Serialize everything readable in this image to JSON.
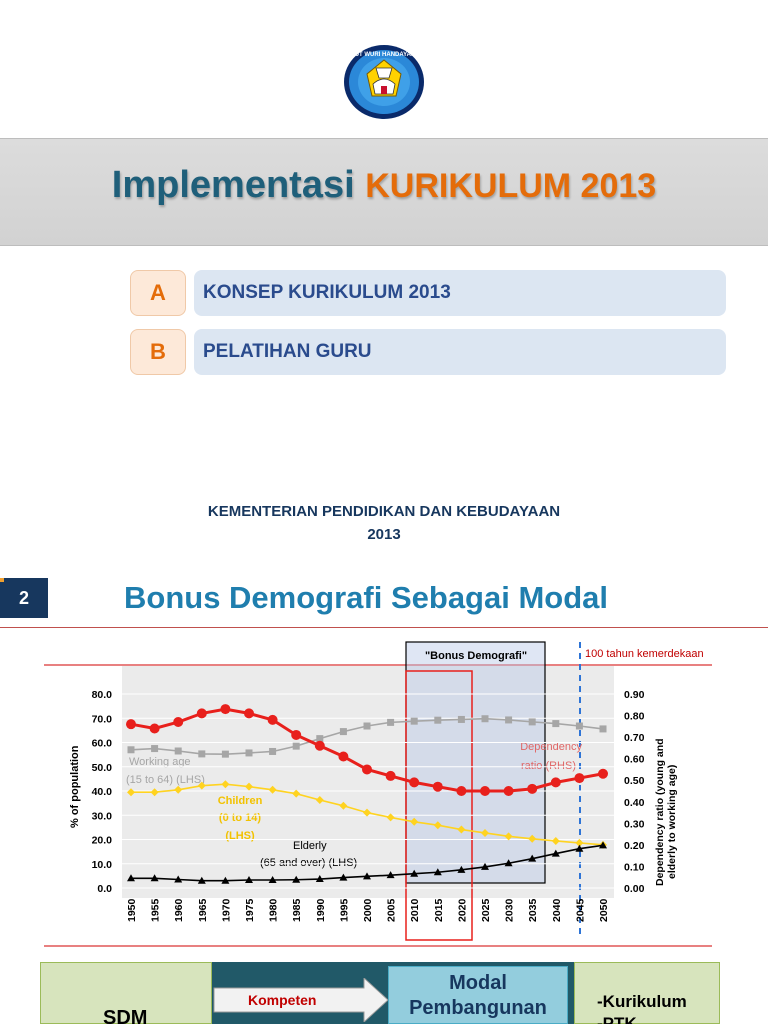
{
  "slide1": {
    "title_main": "Implementasi",
    "title_accent": "KURIKULUM 2013",
    "logo_text": "TUT WURI HANDAYANI",
    "menu": [
      {
        "letter": "A",
        "label": "KONSEP KURIKULUM 2013"
      },
      {
        "letter": "B",
        "label": "PELATIHAN GURU"
      }
    ],
    "ministry": "KEMENTERIAN PENDIDIKAN DAN KEBUDAYAAN",
    "year": "2013"
  },
  "slide2": {
    "number": "2",
    "title": "Bonus Demografi Sebagai Modal"
  },
  "chart_data": {
    "type": "line",
    "x": [
      1950,
      1955,
      1960,
      1965,
      1970,
      1975,
      1980,
      1985,
      1990,
      1995,
      2000,
      2005,
      2010,
      2015,
      2020,
      2025,
      2030,
      2035,
      2040,
      2045,
      2050
    ],
    "ylabel": "% of population",
    "ylabel_right": "Dependency ratio (young and elderly to working age)",
    "ylim": [
      0,
      80
    ],
    "ylim_right": [
      0,
      0.9
    ],
    "y_ticks": [
      "0.0",
      "10.0",
      "20.0",
      "30.0",
      "40.0",
      "50.0",
      "60.0",
      "70.0",
      "80.0"
    ],
    "y_ticks_right": [
      "0.00",
      "0.10",
      "0.20",
      "0.30",
      "0.40",
      "0.50",
      "0.60",
      "0.70",
      "0.80",
      "0.90"
    ],
    "series": [
      {
        "name": "Working age (15 to 64) (LHS)",
        "axis": "left",
        "color": "#a6a6a6",
        "marker": "square",
        "values": [
          57,
          57.5,
          56.5,
          55.3,
          55.2,
          55.7,
          56.3,
          58.5,
          61.6,
          64.5,
          66.8,
          68.3,
          68.8,
          69.2,
          69.5,
          69.8,
          69.3,
          68.5,
          67.8,
          66.8,
          65.6
        ]
      },
      {
        "name": "Children (0 to 14) (LHS)",
        "axis": "left",
        "color": "#ffd320",
        "marker": "diamond",
        "values": [
          39.5,
          39.5,
          40.5,
          42.2,
          42.8,
          41.8,
          40.5,
          38.9,
          36.3,
          33.9,
          31.1,
          29.1,
          27.3,
          25.9,
          24.1,
          22.7,
          21.3,
          20.3,
          19.4,
          18.6,
          17.8
        ]
      },
      {
        "name": "Elderly (65 and over) (LHS)",
        "axis": "left",
        "color": "#000000",
        "marker": "triangle",
        "values": [
          4,
          4,
          3.5,
          3,
          3,
          3.3,
          3.3,
          3.4,
          3.7,
          4.3,
          4.8,
          5.3,
          5.9,
          6.5,
          7.5,
          8.7,
          10.2,
          12.1,
          14.2,
          16.2,
          17.6
        ]
      },
      {
        "name": "Dependency ratio (RHS)",
        "axis": "right",
        "color": "#e8201c",
        "marker": "circle",
        "values": [
          0.76,
          0.74,
          0.77,
          0.81,
          0.83,
          0.81,
          0.78,
          0.71,
          0.66,
          0.61,
          0.55,
          0.52,
          0.49,
          0.47,
          0.45,
          0.45,
          0.45,
          0.46,
          0.49,
          0.51,
          0.53
        ]
      }
    ],
    "legend_labels": {
      "working": [
        "Working age",
        "(15 to 64) (LHS)"
      ],
      "children": [
        "Children",
        "(0 to 14)",
        "(LHS)"
      ],
      "elderly": [
        "Elderly",
        "(65 and over) (LHS)"
      ],
      "dependency": [
        "Dependency",
        "ratio (RHS)"
      ]
    },
    "annotations": {
      "bonus_box": "\"Bonus Demografi\"",
      "centenary": "100  tahun kemerdekaan"
    }
  },
  "bottom": {
    "left_label": "SDM",
    "arrow_label": "Kompeten",
    "modal_line1": "Modal",
    "modal_line2": "Pembangunan",
    "right_line1": "-Kurikulum",
    "right_line2": "-PTK"
  }
}
